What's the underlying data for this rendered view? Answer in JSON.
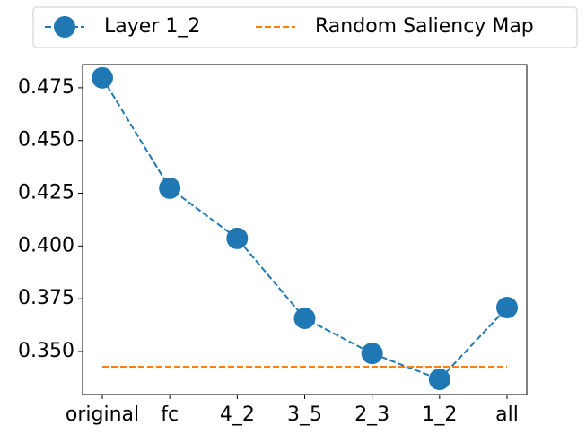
{
  "chart_data": {
    "type": "line",
    "categories": [
      "original",
      "fc",
      "4_2",
      "3_5",
      "2_3",
      "1_2",
      "all"
    ],
    "series": [
      {
        "name": "Layer 1_2",
        "color": "#1f77b4",
        "marker": true,
        "values": [
          0.4797,
          0.4274,
          0.4036,
          0.3657,
          0.3491,
          0.3368,
          0.3708
        ]
      },
      {
        "name": "Random Saliency Map",
        "color": "#ff7f0e",
        "marker": false,
        "values": [
          0.3428,
          0.3428,
          0.3428,
          0.3428,
          0.3428,
          0.3428,
          0.3428
        ]
      }
    ],
    "ylim": [
      0.3296,
      0.486
    ],
    "yticks": [
      {
        "value": 0.35,
        "label": "0.350"
      },
      {
        "value": 0.375,
        "label": "0.375"
      },
      {
        "value": 0.4,
        "label": "0.400"
      },
      {
        "value": 0.425,
        "label": "0.425"
      },
      {
        "value": 0.45,
        "label": "0.450"
      },
      {
        "value": 0.475,
        "label": "0.475"
      }
    ],
    "legend": "top"
  }
}
